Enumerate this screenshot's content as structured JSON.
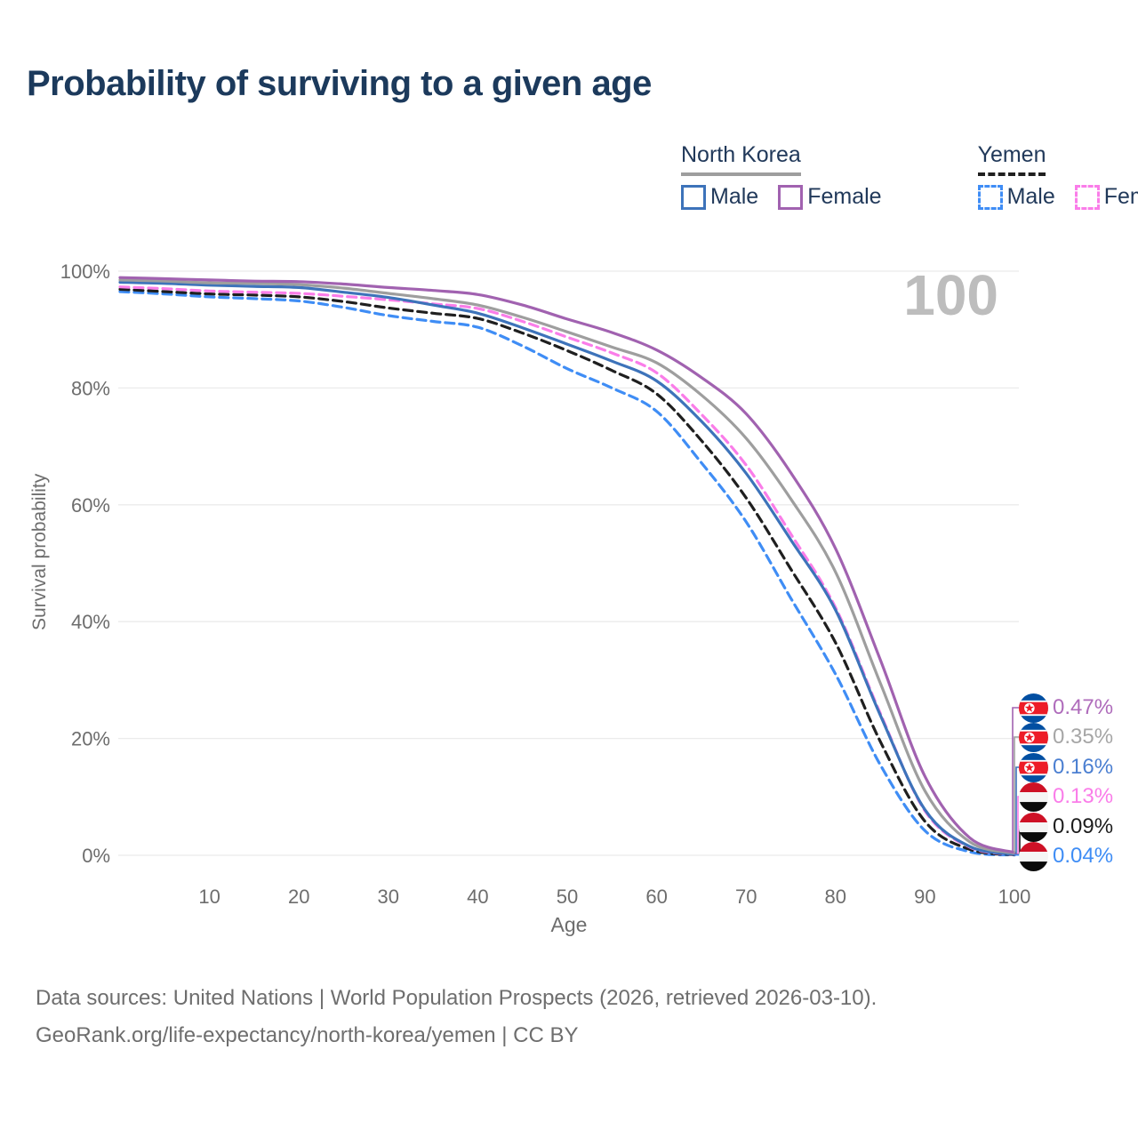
{
  "header": {
    "title": "Probability of surviving to a given age"
  },
  "legend": {
    "groups": [
      {
        "name": "North Korea",
        "line_style": "solid",
        "line_color": "#9e9e9e",
        "items": [
          {
            "label": "Male",
            "color": "#3d73ba",
            "style": "solid"
          },
          {
            "label": "Female",
            "color": "#a162b0",
            "style": "solid"
          }
        ]
      },
      {
        "name": "Yemen",
        "line_style": "dashed",
        "line_color": "#1f1f1f",
        "items": [
          {
            "label": "Male",
            "color": "#3f8df6",
            "style": "dashed"
          },
          {
            "label": "Female",
            "color": "#fa7de9",
            "style": "dashed"
          }
        ]
      }
    ]
  },
  "chart": {
    "watermark": "100"
  },
  "chart_data": {
    "type": "line",
    "title": "Probability of surviving to a given age",
    "xlabel": "Age",
    "ylabel": "Survival probability",
    "xlim": [
      0,
      100
    ],
    "ylim": [
      0,
      100
    ],
    "grid": true,
    "x_ticks": [
      10,
      20,
      30,
      40,
      50,
      60,
      70,
      80,
      90,
      100
    ],
    "y_tick_values": [
      0,
      20,
      40,
      60,
      80,
      100
    ],
    "y_tick_labels": [
      "0%",
      "20%",
      "40%",
      "60%",
      "80%",
      "100%"
    ],
    "ages": [
      0,
      5,
      10,
      15,
      20,
      25,
      30,
      35,
      40,
      45,
      50,
      55,
      60,
      65,
      70,
      75,
      80,
      85,
      90,
      95,
      100
    ],
    "series": [
      {
        "name": "North Korea Female",
        "country": "North Korea",
        "sex": "Female",
        "style": "solid",
        "color": "#a162b0",
        "values": [
          98.9,
          98.7,
          98.5,
          98.3,
          98.2,
          97.8,
          97.2,
          96.7,
          96.0,
          94.2,
          91.8,
          89.5,
          86.5,
          81.8,
          75.6,
          65.5,
          52.5,
          33.5,
          13.5,
          3.0,
          0.47
        ]
      },
      {
        "name": "North Korea Both sexes",
        "country": "North Korea",
        "sex": "Both sexes",
        "style": "solid",
        "color": "#9e9e9e",
        "values": [
          98.5,
          98.3,
          98.0,
          97.9,
          97.7,
          97.1,
          96.2,
          95.3,
          94.2,
          92.1,
          89.6,
          87.0,
          84.3,
          78.8,
          71.4,
          61.0,
          48.5,
          29.5,
          11.0,
          2.3,
          0.35
        ]
      },
      {
        "name": "North Korea Male",
        "country": "North Korea",
        "sex": "Male",
        "style": "solid",
        "color": "#3d73ba",
        "values": [
          98.1,
          97.9,
          97.6,
          97.4,
          97.2,
          96.4,
          95.5,
          94.2,
          92.8,
          90.3,
          87.5,
          84.6,
          81.2,
          74.3,
          65.4,
          54.0,
          42.0,
          24.0,
          7.8,
          1.5,
          0.16
        ]
      },
      {
        "name": "Yemen Female",
        "country": "Yemen",
        "sex": "Female",
        "style": "dashed",
        "color": "#fa7de9",
        "values": [
          97.3,
          97.0,
          96.6,
          96.4,
          96.2,
          95.7,
          95.1,
          94.4,
          93.6,
          91.4,
          88.7,
          86.0,
          82.6,
          75.5,
          66.8,
          55.0,
          42.4,
          24.3,
          7.6,
          1.4,
          0.13
        ]
      },
      {
        "name": "Yemen Both sexes",
        "country": "Yemen",
        "sex": "Both sexes",
        "style": "dashed",
        "color": "#1f1f1f",
        "values": [
          96.9,
          96.5,
          96.1,
          95.9,
          95.6,
          94.8,
          93.7,
          92.8,
          91.9,
          89.4,
          86.4,
          83.0,
          79.0,
          71.0,
          61.2,
          49.0,
          36.4,
          19.5,
          5.8,
          1.0,
          0.09
        ]
      },
      {
        "name": "Yemen Male",
        "country": "Yemen",
        "sex": "Male",
        "style": "dashed",
        "color": "#3f8df5",
        "values": [
          96.5,
          96.1,
          95.6,
          95.3,
          94.9,
          93.8,
          92.4,
          91.4,
          90.4,
          87.2,
          83.3,
          80.0,
          76.0,
          67.2,
          57.1,
          44.0,
          31.0,
          15.5,
          4.2,
          0.6,
          0.04
        ]
      }
    ],
    "legend_position": "top-right"
  },
  "annotations": {
    "labels": [
      {
        "country": "North Korea",
        "value": "0.47%",
        "color": "#af6cbb"
      },
      {
        "country": "North Korea",
        "value": "0.35%",
        "color": "#a6a6a6"
      },
      {
        "country": "North Korea",
        "value": "0.16%",
        "color": "#4b7fd1"
      },
      {
        "country": "Yemen",
        "value": "0.13%",
        "color": "#fa7de9"
      },
      {
        "country": "Yemen",
        "value": "0.09%",
        "color": "#1c1c1c"
      },
      {
        "country": "Yemen",
        "value": "0.04%",
        "color": "#3f8df5"
      }
    ]
  },
  "footer": {
    "line1": "Data sources: United Nations | World Population Prospects (2026, retrieved 2026-03-10).",
    "line2": "GeoRank.org/life-expectancy/north-korea/yemen | CC BY"
  }
}
